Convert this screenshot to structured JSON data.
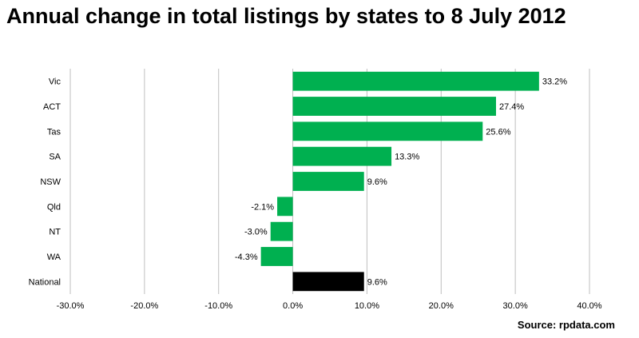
{
  "chart_data": {
    "type": "bar",
    "orientation": "horizontal",
    "title": "Annual change in total listings by states to 8 July 2012",
    "categories": [
      "Vic",
      "ACT",
      "Tas",
      "SA",
      "NSW",
      "Qld",
      "NT",
      "WA",
      "National"
    ],
    "values": [
      33.2,
      27.4,
      25.6,
      13.3,
      9.6,
      -2.1,
      -3.0,
      -4.3,
      9.6
    ],
    "data_labels": [
      "33.2%",
      "27.4%",
      "25.6%",
      "13.3%",
      "9.6%",
      "-2.1%",
      "-3.0%",
      "-4.3%",
      "9.6%"
    ],
    "bar_colors": [
      "#00b050",
      "#00b050",
      "#00b050",
      "#00b050",
      "#00b050",
      "#00b050",
      "#00b050",
      "#00b050",
      "#000000"
    ],
    "xlim": [
      -30,
      40
    ],
    "x_ticks": [
      -30,
      -20,
      -10,
      0,
      10,
      20,
      30,
      40
    ],
    "x_tick_labels": [
      "-30.0%",
      "-20.0%",
      "-10.0%",
      "0.0%",
      "10.0%",
      "20.0%",
      "30.0%",
      "40.0%"
    ],
    "grid": true,
    "xlabel": "",
    "ylabel": ""
  },
  "source": "Source: rpdata.com",
  "colors": {
    "positive_bar": "#00b050",
    "national_bar": "#000000",
    "grid": "#bfbfbf"
  }
}
